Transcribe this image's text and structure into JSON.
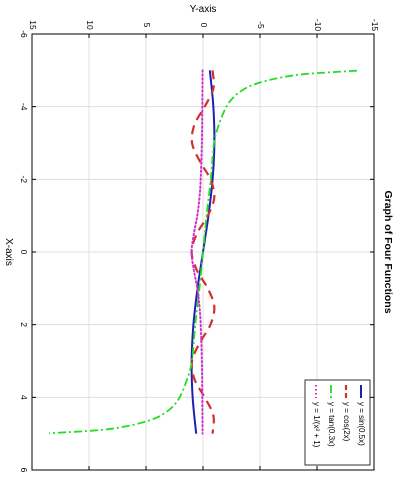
{
  "chart_data": {
    "type": "line",
    "title": "Graph of Four Functions",
    "xlabel": "X-axis",
    "ylabel": "Y-axis",
    "xlim": [
      -6,
      6
    ],
    "ylim": [
      -15,
      15
    ],
    "x_ticks": [
      -6,
      -4,
      -2,
      0,
      2,
      4,
      6
    ],
    "y_ticks": [
      -15,
      -10,
      -5,
      0,
      5,
      10,
      15
    ],
    "grid": true,
    "orientation": "rotated 90 degrees clockwise",
    "legend_position": "bottom-right",
    "series": [
      {
        "name": "y = sin(0.5x)",
        "color": "#1f1fb4",
        "style": "solid",
        "x": [
          -5,
          -4,
          -3,
          -2,
          -1,
          0,
          1,
          2,
          3,
          4,
          5
        ],
        "y": [
          -0.598,
          -0.909,
          -0.997,
          -0.841,
          -0.479,
          0,
          0.479,
          0.841,
          0.997,
          0.909,
          0.598
        ]
      },
      {
        "name": "y = cos(2x)",
        "color": "#d32f2f",
        "style": "dashed",
        "x": [
          -5,
          -4.5,
          -4,
          -3.5,
          -3,
          -2.5,
          -2,
          -1.5,
          -1,
          -0.5,
          0,
          0.5,
          1,
          1.5,
          2,
          2.5,
          3,
          3.5,
          4,
          4.5,
          5
        ],
        "y": [
          -0.839,
          -0.911,
          -0.146,
          0.754,
          0.96,
          0.284,
          -0.654,
          -0.99,
          -0.416,
          0.54,
          1,
          0.54,
          -0.416,
          -0.99,
          -0.654,
          0.284,
          0.96,
          0.754,
          -0.146,
          -0.911,
          -0.839
        ]
      },
      {
        "name": "y = tan(0.3x)",
        "color": "#22dd22",
        "style": "dashdot",
        "x": [
          -4.99,
          -4.9,
          -4.8,
          -4.7,
          -4.6,
          -4.5,
          -4.3,
          -4,
          -3.5,
          -3,
          -2,
          -1,
          0,
          1,
          2,
          3,
          3.5,
          4,
          4.3,
          4.5,
          4.6,
          4.7,
          4.8,
          4.9,
          4.99
        ],
        "y": [
          -13.5,
          -9.0,
          -6.8,
          -5.4,
          -4.4,
          -3.7,
          -2.8,
          -2.05,
          -1.39,
          -0.97,
          -0.68,
          -0.31,
          0,
          0.31,
          0.68,
          0.97,
          1.39,
          2.05,
          2.8,
          3.7,
          4.4,
          5.4,
          6.8,
          9.0,
          13.5
        ]
      },
      {
        "name": "y = 1/(x² + 1)",
        "color": "#cc33cc",
        "style": "dotted",
        "x": [
          -5,
          -4,
          -3,
          -2,
          -1.5,
          -1,
          -0.5,
          0,
          0.5,
          1,
          1.5,
          2,
          3,
          4,
          5
        ],
        "y": [
          0.038,
          0.059,
          0.1,
          0.2,
          0.308,
          0.5,
          0.8,
          1,
          0.8,
          0.5,
          0.308,
          0.2,
          0.1,
          0.059,
          0.038
        ]
      }
    ]
  }
}
